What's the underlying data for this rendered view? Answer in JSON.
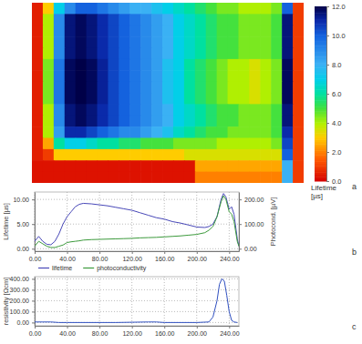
{
  "chart_data": [
    {
      "type": "heatmap",
      "z": [
        [
          0.5,
          3,
          7,
          9,
          10,
          10,
          9.5,
          9,
          8.5,
          8,
          8,
          7.5,
          7,
          6.5,
          6,
          5.5,
          5,
          4.5,
          4.5,
          4,
          4,
          4,
          4.5,
          10,
          1
        ],
        [
          0.5,
          4,
          9,
          11.5,
          11.8,
          11.5,
          11,
          10.5,
          10,
          9.5,
          9,
          8.5,
          8,
          7,
          6.5,
          6,
          5.5,
          5,
          5,
          4.5,
          4.5,
          4.5,
          5,
          11.5,
          1
        ],
        [
          0.5,
          4,
          9,
          11.5,
          11.8,
          11.5,
          11,
          10.5,
          10,
          9.5,
          9,
          8.5,
          8,
          7,
          6.5,
          6,
          5.5,
          5,
          5,
          4.5,
          4.5,
          4.5,
          5,
          11.5,
          1
        ],
        [
          0.5,
          4,
          9,
          11.5,
          11.8,
          11.5,
          11,
          10.5,
          10,
          9.5,
          9,
          8.5,
          8,
          7,
          6.5,
          6,
          5.5,
          5,
          5,
          4.5,
          4.5,
          4.5,
          5,
          11.5,
          1
        ],
        [
          0.5,
          4,
          9,
          11.5,
          11.8,
          11.5,
          11,
          10.5,
          10,
          9.5,
          9,
          8.5,
          8,
          7,
          6.5,
          6,
          5.5,
          5,
          5,
          4.5,
          4.5,
          4.5,
          5,
          11.5,
          1
        ],
        [
          0.5,
          4.5,
          9.5,
          11.8,
          12,
          11.8,
          11.2,
          10.5,
          10,
          9.5,
          9,
          8.5,
          7.5,
          7,
          6,
          5.5,
          5,
          4.5,
          4,
          4,
          3.5,
          4,
          4.5,
          11.8,
          1
        ],
        [
          0.5,
          4.5,
          9.5,
          11.8,
          12,
          11.8,
          11.2,
          10.5,
          10,
          9.5,
          9,
          8.5,
          7.5,
          7,
          6,
          5.5,
          5,
          4.5,
          4,
          4,
          3.5,
          4,
          4.5,
          11.8,
          1
        ],
        [
          0.5,
          4.5,
          9.5,
          11.8,
          12,
          11.8,
          11.2,
          10.5,
          10,
          9.5,
          9,
          8.5,
          7.5,
          7,
          6,
          5.5,
          5,
          4.5,
          4,
          4,
          3.5,
          4,
          4.5,
          11.8,
          1
        ],
        [
          0.5,
          4.5,
          9.5,
          11.8,
          12,
          11.8,
          11.2,
          10.5,
          10,
          9.5,
          9,
          8.5,
          7.5,
          7,
          6,
          5.5,
          5,
          4.5,
          4,
          4,
          3.5,
          4,
          4.5,
          11.8,
          1
        ],
        [
          0.5,
          4,
          9,
          11.5,
          11.8,
          11.5,
          11,
          10.5,
          10,
          9.5,
          9,
          8.5,
          8,
          7,
          6.5,
          6,
          5.5,
          5,
          5,
          4.5,
          4.5,
          4.5,
          5,
          11.5,
          1
        ],
        [
          0.5,
          4,
          9,
          11.5,
          11.8,
          11.5,
          11,
          10.5,
          10,
          9.5,
          9,
          8.5,
          8,
          7,
          6.5,
          6,
          5.5,
          5,
          5,
          4.5,
          4.5,
          4.5,
          5,
          11.5,
          1
        ],
        [
          0.5,
          4,
          8.5,
          11,
          11,
          10.5,
          10,
          9.5,
          9,
          9,
          8.5,
          8,
          7.5,
          6.5,
          6,
          5.5,
          5,
          5,
          4.5,
          4.5,
          4.5,
          4.5,
          5,
          11,
          1
        ],
        [
          0.5,
          2.5,
          6,
          7,
          7,
          6.5,
          6,
          6,
          5.5,
          5.5,
          5,
          5,
          5,
          4.5,
          4.5,
          4.5,
          4.5,
          4,
          4,
          4,
          4,
          4,
          4.5,
          10.5,
          1
        ],
        [
          0.5,
          1,
          3,
          3,
          3,
          3,
          3,
          3,
          3,
          3,
          3,
          3,
          3,
          3,
          3.5,
          3.5,
          3.5,
          3.5,
          3.5,
          3.5,
          3.5,
          3.5,
          3.5,
          10,
          1
        ],
        [
          0.3,
          0.3,
          0.3,
          0.3,
          0.3,
          0.3,
          0.3,
          0.3,
          0.3,
          0.3,
          0.3,
          0.3,
          0.3,
          0.3,
          0.3,
          2.5,
          2.5,
          2.5,
          2.5,
          2.5,
          2.5,
          2.5,
          2.5,
          8,
          1
        ],
        [
          0.3,
          0.3,
          0.3,
          0.3,
          0.3,
          0.3,
          0.3,
          0.3,
          0.3,
          0.3,
          0.3,
          0.3,
          0.3,
          0.3,
          0.3,
          2,
          2,
          2,
          2,
          2,
          2,
          2,
          2,
          8,
          1
        ]
      ],
      "colorbar_range": [
        0,
        12
      ],
      "colorbar_ticks": [
        {
          "value": 12,
          "label": "12.0"
        },
        {
          "value": 10,
          "label": "10.0"
        },
        {
          "value": 8,
          "label": "8.0"
        },
        {
          "value": 6,
          "label": "6.0"
        },
        {
          "value": 4,
          "label": "4.0"
        },
        {
          "value": 2,
          "label": "2.0"
        },
        {
          "value": 0,
          "label": "0.0"
        }
      ],
      "colorbar_label": "Lifetime [µs]",
      "panel_label": "a",
      "tick_labels": false
    },
    {
      "type": "line",
      "x": [
        0,
        5,
        10,
        15,
        20,
        25,
        30,
        35,
        40,
        45,
        50,
        55,
        60,
        70,
        80,
        90,
        100,
        110,
        120,
        130,
        140,
        150,
        160,
        170,
        180,
        190,
        200,
        210,
        215,
        220,
        225,
        230,
        233,
        236,
        240,
        243,
        246,
        250,
        252
      ],
      "series": [
        {
          "name": "lifetime",
          "color": "#4848b8",
          "values": [
            1.5,
            2.5,
            1.5,
            0.9,
            0.8,
            1.5,
            3,
            5,
            6.5,
            7.5,
            8.5,
            9,
            9.2,
            9.1,
            8.9,
            8.7,
            8.4,
            8.1,
            7.8,
            7.3,
            6.8,
            6.3,
            6,
            5.5,
            5.2,
            4.8,
            4.4,
            4.3,
            4.5,
            5,
            6.5,
            10,
            11.2,
            10.5,
            8,
            8.5,
            7,
            2,
            0.5
          ]
        },
        {
          "name": "photoconductivity",
          "color": "#3c9a3c",
          "axis": "y2",
          "values": [
            10,
            30,
            20,
            10,
            5,
            5,
            10,
            15,
            25,
            28,
            30,
            32,
            35,
            37,
            38,
            39,
            40,
            41,
            42,
            44,
            45,
            46,
            48,
            50,
            52,
            55,
            58,
            65,
            75,
            90,
            130,
            190,
            215,
            200,
            150,
            140,
            110,
            30,
            10
          ]
        }
      ],
      "xlim": [
        0,
        252
      ],
      "ylim": [
        -0.5,
        11.5
      ],
      "y2lim": [
        -10,
        230
      ],
      "xticks": [
        {
          "value": 0,
          "label": "0.00"
        },
        {
          "value": 40,
          "label": "40.00"
        },
        {
          "value": 80,
          "label": "80.00"
        },
        {
          "value": 120,
          "label": "120.00"
        },
        {
          "value": 160,
          "label": "160.00"
        },
        {
          "value": 200,
          "label": "200.00"
        },
        {
          "value": 240,
          "label": "240.00"
        }
      ],
      "yticks": [
        {
          "value": 0,
          "label": "0.00"
        },
        {
          "value": 5,
          "label": "5.00"
        },
        {
          "value": 10,
          "label": "10.00"
        }
      ],
      "y2ticks": [
        {
          "value": 0,
          "label": "0.00"
        },
        {
          "value": 100,
          "label": "100.00"
        },
        {
          "value": 200,
          "label": "200.00"
        }
      ],
      "ylabel": "Lifetime [µs]",
      "y2label": "Photocond. [µV]",
      "grid": true,
      "legend": "bottom",
      "panel_label": "b"
    },
    {
      "type": "line",
      "x": [
        0,
        10,
        20,
        30,
        40,
        100,
        140,
        150,
        160,
        200,
        215,
        220,
        225,
        228,
        231,
        234,
        237,
        240,
        243,
        246,
        250
      ],
      "series": [
        {
          "color": "#3050c0",
          "values": [
            5,
            5,
            5,
            0,
            0,
            0,
            5,
            5,
            0,
            0,
            5,
            50,
            200,
            350,
            400,
            380,
            250,
            100,
            20,
            5,
            0
          ]
        }
      ],
      "xlim": [
        0,
        252
      ],
      "ylim": [
        -30,
        420
      ],
      "xticks": [
        {
          "value": 0,
          "label": "0.00"
        },
        {
          "value": 40,
          "label": "40.00"
        },
        {
          "value": 80,
          "label": "80.00"
        },
        {
          "value": 120,
          "label": "120.00"
        },
        {
          "value": 160,
          "label": "160.00"
        },
        {
          "value": 200,
          "label": "200.00"
        },
        {
          "value": 240,
          "label": "240.00"
        }
      ],
      "yticks": [
        {
          "value": 0,
          "label": "0.00"
        },
        {
          "value": 100,
          "label": "100.00"
        },
        {
          "value": 200,
          "label": "200.00"
        },
        {
          "value": 300,
          "label": "300.00"
        },
        {
          "value": 400,
          "label": "400.00"
        }
      ],
      "ylabel": "resistivity [Ωcm]",
      "grid": true,
      "panel_label": "c"
    }
  ]
}
